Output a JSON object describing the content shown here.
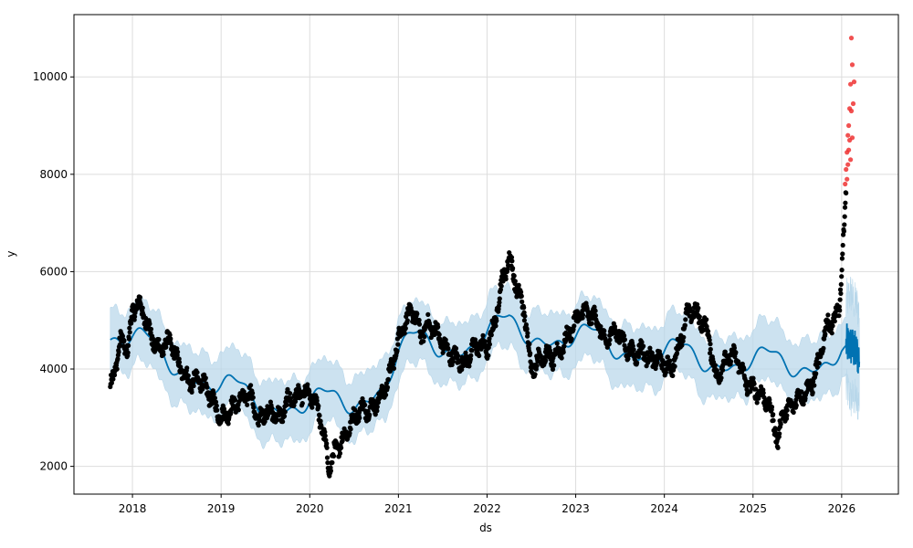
{
  "chart_data": {
    "type": "scatter",
    "xlabel": "ds",
    "ylabel": "y",
    "xlim": [
      2017.34,
      2026.64
    ],
    "ylim": [
      1430,
      11280
    ],
    "x_ticks": [
      2018,
      2019,
      2020,
      2021,
      2022,
      2023,
      2024,
      2025,
      2026
    ],
    "x_tick_labels": [
      "2018",
      "2019",
      "2020",
      "2021",
      "2022",
      "2023",
      "2024",
      "2025",
      "2026"
    ],
    "y_ticks": [
      2000,
      4000,
      6000,
      8000,
      10000
    ],
    "y_tick_labels": [
      "2000",
      "4000",
      "6000",
      "8000",
      "10000"
    ],
    "grid": true,
    "colors": {
      "observed": "#000000",
      "outlier": "#ee3333",
      "forecast": "#0072b2",
      "band": "#b8d7ea"
    },
    "observed_knots": [
      [
        2017.75,
        3600
      ],
      [
        2017.8,
        4000
      ],
      [
        2017.87,
        4600
      ],
      [
        2017.95,
        4400
      ],
      [
        2018.0,
        5200
      ],
      [
        2018.08,
        5350
      ],
      [
        2018.17,
        4900
      ],
      [
        2018.25,
        4500
      ],
      [
        2018.33,
        4400
      ],
      [
        2018.42,
        4600
      ],
      [
        2018.5,
        4200
      ],
      [
        2018.58,
        3900
      ],
      [
        2018.67,
        3700
      ],
      [
        2018.75,
        3800
      ],
      [
        2018.83,
        3600
      ],
      [
        2018.92,
        3300
      ],
      [
        2019.0,
        3000
      ],
      [
        2019.08,
        3100
      ],
      [
        2019.17,
        3300
      ],
      [
        2019.25,
        3400
      ],
      [
        2019.33,
        3500
      ],
      [
        2019.42,
        2900
      ],
      [
        2019.5,
        3150
      ],
      [
        2019.58,
        3100
      ],
      [
        2019.67,
        3000
      ],
      [
        2019.75,
        3350
      ],
      [
        2019.83,
        3400
      ],
      [
        2019.92,
        3500
      ],
      [
        2020.0,
        3450
      ],
      [
        2020.08,
        3300
      ],
      [
        2020.17,
        2500
      ],
      [
        2020.22,
        1950
      ],
      [
        2020.28,
        2300
      ],
      [
        2020.42,
        2700
      ],
      [
        2020.5,
        3000
      ],
      [
        2020.58,
        3200
      ],
      [
        2020.67,
        3150
      ],
      [
        2020.75,
        3300
      ],
      [
        2020.83,
        3500
      ],
      [
        2020.92,
        4000
      ],
      [
        2021.0,
        4600
      ],
      [
        2021.08,
        5000
      ],
      [
        2021.17,
        5200
      ],
      [
        2021.25,
        4700
      ],
      [
        2021.33,
        4900
      ],
      [
        2021.42,
        4800
      ],
      [
        2021.5,
        4500
      ],
      [
        2021.58,
        4300
      ],
      [
        2021.67,
        4200
      ],
      [
        2021.75,
        4100
      ],
      [
        2021.83,
        4400
      ],
      [
        2021.92,
        4500
      ],
      [
        2022.0,
        4400
      ],
      [
        2022.08,
        4900
      ],
      [
        2022.17,
        5800
      ],
      [
        2022.25,
        6300
      ],
      [
        2022.33,
        5700
      ],
      [
        2022.42,
        5200
      ],
      [
        2022.5,
        4000
      ],
      [
        2022.58,
        4200
      ],
      [
        2022.67,
        4300
      ],
      [
        2022.75,
        4200
      ],
      [
        2022.83,
        4400
      ],
      [
        2022.92,
        4700
      ],
      [
        2023.0,
        5000
      ],
      [
        2023.08,
        5200
      ],
      [
        2023.17,
        5100
      ],
      [
        2023.25,
        5000
      ],
      [
        2023.33,
        4500
      ],
      [
        2023.42,
        4800
      ],
      [
        2023.5,
        4700
      ],
      [
        2023.58,
        4400
      ],
      [
        2023.67,
        4300
      ],
      [
        2023.75,
        4400
      ],
      [
        2023.83,
        4200
      ],
      [
        2023.92,
        4200
      ],
      [
        2024.0,
        4100
      ],
      [
        2024.08,
        4000
      ],
      [
        2024.17,
        4500
      ],
      [
        2024.25,
        5100
      ],
      [
        2024.33,
        5200
      ],
      [
        2024.42,
        5000
      ],
      [
        2024.5,
        4700
      ],
      [
        2024.58,
        3800
      ],
      [
        2024.67,
        4100
      ],
      [
        2024.75,
        4300
      ],
      [
        2024.83,
        4200
      ],
      [
        2024.92,
        3700
      ],
      [
        2025.0,
        3600
      ],
      [
        2025.08,
        3500
      ],
      [
        2025.17,
        3300
      ],
      [
        2025.25,
        2800
      ],
      [
        2025.28,
        2450
      ],
      [
        2025.33,
        3100
      ],
      [
        2025.42,
        3200
      ],
      [
        2025.5,
        3400
      ],
      [
        2025.58,
        3500
      ],
      [
        2025.67,
        3700
      ],
      [
        2025.75,
        4200
      ],
      [
        2025.83,
        4900
      ],
      [
        2025.92,
        5000
      ],
      [
        2025.97,
        5200
      ],
      [
        2026.0,
        6000
      ],
      [
        2026.03,
        7000
      ],
      [
        2026.05,
        7500
      ]
    ],
    "outlier_points": [
      [
        2026.04,
        7800
      ],
      [
        2026.05,
        8100
      ],
      [
        2026.06,
        8450
      ],
      [
        2026.07,
        8800
      ],
      [
        2026.08,
        9000
      ],
      [
        2026.09,
        9350
      ],
      [
        2026.1,
        9850
      ],
      [
        2026.11,
        10800
      ],
      [
        2026.12,
        10250
      ],
      [
        2026.13,
        9450
      ],
      [
        2026.14,
        9900
      ],
      [
        2026.12,
        8750
      ],
      [
        2026.09,
        8700
      ],
      [
        2026.07,
        8200
      ],
      [
        2026.1,
        8300
      ],
      [
        2026.11,
        9300
      ],
      [
        2026.08,
        8500
      ],
      [
        2026.06,
        7900
      ]
    ],
    "trend_knots": [
      [
        2017.75,
        4720
      ],
      [
        2018.0,
        4600
      ],
      [
        2018.5,
        4100
      ],
      [
        2019.0,
        3600
      ],
      [
        2019.5,
        3300
      ],
      [
        2020.0,
        3250
      ],
      [
        2020.5,
        3350
      ],
      [
        2020.85,
        3700
      ],
      [
        2021.0,
        4300
      ],
      [
        2021.25,
        4550
      ],
      [
        2021.5,
        4500
      ],
      [
        2021.75,
        4450
      ],
      [
        2022.0,
        4700
      ],
      [
        2022.25,
        4850
      ],
      [
        2022.5,
        4750
      ],
      [
        2022.75,
        4650
      ],
      [
        2023.0,
        4600
      ],
      [
        2023.25,
        4550
      ],
      [
        2023.5,
        4450
      ],
      [
        2023.75,
        4350
      ],
      [
        2024.0,
        4300
      ],
      [
        2024.25,
        4250
      ],
      [
        2024.5,
        4200
      ],
      [
        2024.75,
        4150
      ],
      [
        2025.0,
        4120
      ],
      [
        2025.25,
        4100
      ],
      [
        2025.5,
        4100
      ],
      [
        2025.75,
        4150
      ],
      [
        2026.0,
        4300
      ],
      [
        2026.06,
        4200
      ],
      [
        2026.2,
        4000
      ]
    ],
    "seasonal_amplitude": 230,
    "band_halfwidth": 620,
    "history_end": 2026.05,
    "forecast_end": 2026.2,
    "points_per_year": 250
  }
}
